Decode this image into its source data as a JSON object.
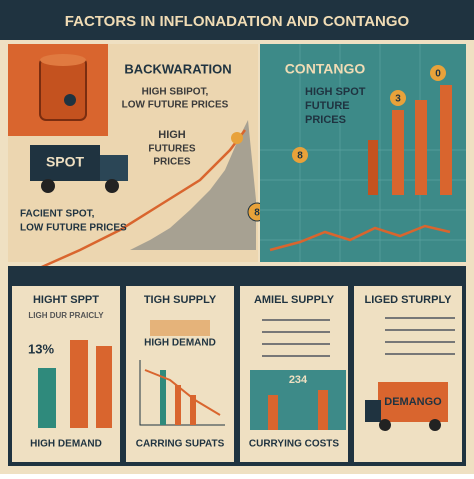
{
  "header": {
    "title": "FACTORS IN INFLONADATION AND CONTANGO"
  },
  "backwardation": {
    "title": "BACKWARATION",
    "subtitle": [
      "HIGH SBIPOT,",
      "LOW FUTURE PRICES"
    ],
    "truck_label": "SPOT",
    "curve_label": [
      "HIGH",
      "FUTURES",
      "PRICES"
    ],
    "bottom_label": [
      "FACIENT SPOT,",
      "LOW FUTURE PRICES"
    ],
    "coin": "8"
  },
  "contango": {
    "title": "CONTANGO",
    "subtitle": [
      "HIGH SPOT",
      "FUTURE",
      "PRICES"
    ],
    "coins": [
      "3",
      "8",
      "0"
    ]
  },
  "panels": [
    {
      "title": "HIGHT SPPT",
      "subtitle": "LIGH DUR PRAICLY",
      "figure": "13%",
      "caption": "HIGH DEMAND"
    },
    {
      "title": "TIGH SUPPLY",
      "subtitle": "HIGH DEMAND",
      "caption": "CARRING SUPATS"
    },
    {
      "title": "AMIEL SUPPLY",
      "figure": "234",
      "caption": "CURRYING COSTS"
    },
    {
      "title": "LIGED STURPLY",
      "figure": "DEMANGO"
    }
  ]
}
